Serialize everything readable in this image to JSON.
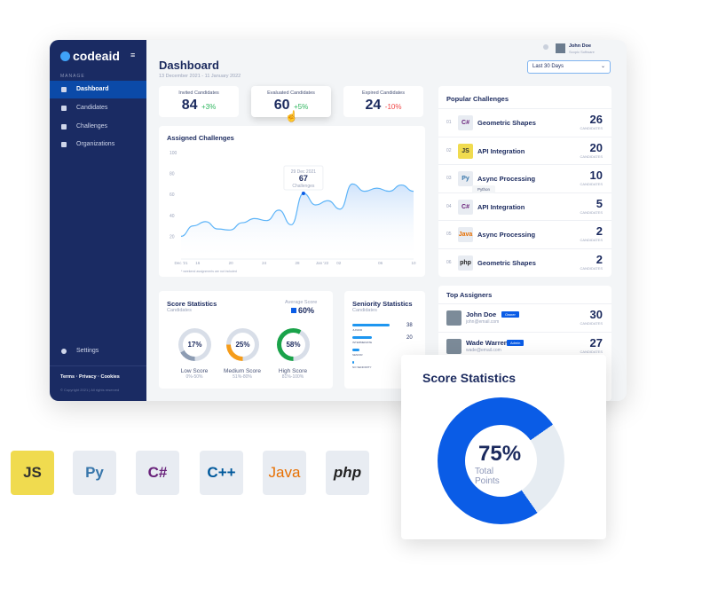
{
  "sidebar": {
    "logo": "codeaid",
    "section": "MANAGE",
    "items": [
      {
        "label": "Dashboard"
      },
      {
        "label": "Candidates"
      },
      {
        "label": "Challenges"
      },
      {
        "label": "Organizations"
      }
    ],
    "settings": "Settings",
    "footer_links": [
      "Terms",
      "Privacy",
      "Cookies"
    ],
    "copyright": "© Copyright 2021 | All rights reserved"
  },
  "header": {
    "title": "Dashboard",
    "date_range": "13 December 2021 - 11 January 2022",
    "user_name": "John Doe",
    "user_company": "Scopic Software",
    "period": "Last 30 Days"
  },
  "stats": [
    {
      "label": "Invited Candidates",
      "value": "84",
      "change": "+3%",
      "color": "#2db55d"
    },
    {
      "label": "Evaluated Candidates",
      "value": "60",
      "change": "+5%",
      "color": "#2db55d"
    },
    {
      "label": "Expired Candidates",
      "value": "24",
      "change": "-10%",
      "color": "#f04848"
    }
  ],
  "assigned": {
    "title": "Assigned Challenges",
    "y_ticks": [
      "100",
      "80",
      "60",
      "40",
      "20"
    ],
    "x_ticks": [
      "Dec '21",
      "16",
      "20",
      "24",
      "28",
      "Jan '22",
      "02",
      "06",
      "10"
    ],
    "values": [
      20,
      30,
      34,
      27,
      26,
      33,
      37,
      35,
      45,
      31,
      61,
      50,
      54,
      46,
      70,
      63,
      66,
      63,
      69,
      63
    ],
    "tooltip": {
      "date": "29 Dec 2021",
      "value": "67",
      "unit": "Challenges"
    },
    "note": "* weekend assignments are not included"
  },
  "score": {
    "title": "Score Statistics",
    "subtitle": "Candidates",
    "avg_label": "Average Score",
    "avg": "60%",
    "rings": [
      {
        "pct": 17,
        "label": "17%",
        "name": "Low Score",
        "range": "0%-50%",
        "color": "#8d9cb3"
      },
      {
        "pct": 25,
        "label": "25%",
        "name": "Medium Score",
        "range": "51%-80%",
        "color": "#f59c1a"
      },
      {
        "pct": 58,
        "label": "58%",
        "name": "High Score",
        "range": "81%-100%",
        "color": "#1aa34a"
      }
    ]
  },
  "seniority": {
    "title": "Seniority Statistics",
    "subtitle": "Candidates",
    "rows": [
      {
        "label": "JUNIOR",
        "value": "38",
        "frac": 1
      },
      {
        "label": "INTERMEDIATE",
        "value": "20",
        "frac": 0.53
      },
      {
        "label": "SENIOR",
        "value": "",
        "frac": 0.2
      },
      {
        "label": "NO SENIORITY",
        "value": "",
        "frac": 0.04
      }
    ]
  },
  "popular": {
    "title": "Popular Challenges",
    "unit": "CANDIDATES",
    "tooltip": "Python",
    "items": [
      {
        "n": "01",
        "name": "Geometric Shapes",
        "count": "26",
        "lang": "C#"
      },
      {
        "n": "02",
        "name": "API Integration",
        "count": "20",
        "lang": "JS"
      },
      {
        "n": "03",
        "name": "Async Processing",
        "count": "10",
        "lang": "Py"
      },
      {
        "n": "04",
        "name": "API Integration",
        "count": "5",
        "lang": "C#"
      },
      {
        "n": "05",
        "name": "Async Processing",
        "count": "2",
        "lang": "Java"
      },
      {
        "n": "06",
        "name": "Geometric Shapes",
        "count": "2",
        "lang": "php"
      }
    ]
  },
  "assigners": {
    "title": "Top Assigners",
    "unit": "CANDIDATES",
    "items": [
      {
        "name": "John Doe",
        "role": "Owner",
        "email": "john@email.com",
        "count": "30"
      },
      {
        "name": "Wade Warren",
        "role": "Admin",
        "email": "wade@email.com",
        "count": "27"
      }
    ]
  },
  "popup": {
    "title": "Score Statistics",
    "value": "75%",
    "label": "Total Points",
    "pct": 75,
    "color": "#0a5ce6"
  },
  "languages": [
    "JS",
    "Py",
    "C#",
    "C++",
    "Java",
    "php"
  ]
}
